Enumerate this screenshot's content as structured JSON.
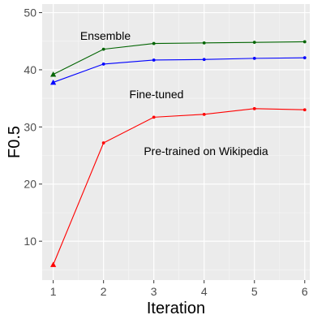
{
  "chart_data": {
    "type": "line",
    "title": "",
    "xlabel": "Iteration",
    "ylabel": "F0.5",
    "x": [
      1,
      2,
      3,
      4,
      5,
      6
    ],
    "xlim": [
      0.78,
      6.1
    ],
    "ylim": [
      3.2,
      51.5
    ],
    "xticks": [
      1,
      2,
      3,
      4,
      5,
      6
    ],
    "yticks": [
      10,
      20,
      30,
      40,
      50
    ],
    "grid": true,
    "legend": "none",
    "background": "#ebebeb",
    "series": [
      {
        "name": "Ensemble",
        "color": "#006400",
        "values": [
          39.2,
          43.6,
          44.6,
          44.7,
          44.8,
          44.9
        ],
        "first_marker": "triangle"
      },
      {
        "name": "Fine-tuned",
        "color": "#0000ff",
        "values": [
          37.8,
          41.0,
          41.7,
          41.8,
          42.0,
          42.1
        ],
        "first_marker": "triangle"
      },
      {
        "name": "Pre-trained on Wikipedia",
        "color": "#ff0000",
        "values": [
          5.9,
          27.2,
          31.7,
          32.2,
          33.2,
          33.0
        ],
        "first_marker": "triangle"
      }
    ],
    "annotations": [
      {
        "text": "Ensemble",
        "series": 0
      },
      {
        "text": "Fine-tuned",
        "series": 1
      },
      {
        "text": "Pre-trained on Wikipedia",
        "series": 2
      }
    ]
  }
}
